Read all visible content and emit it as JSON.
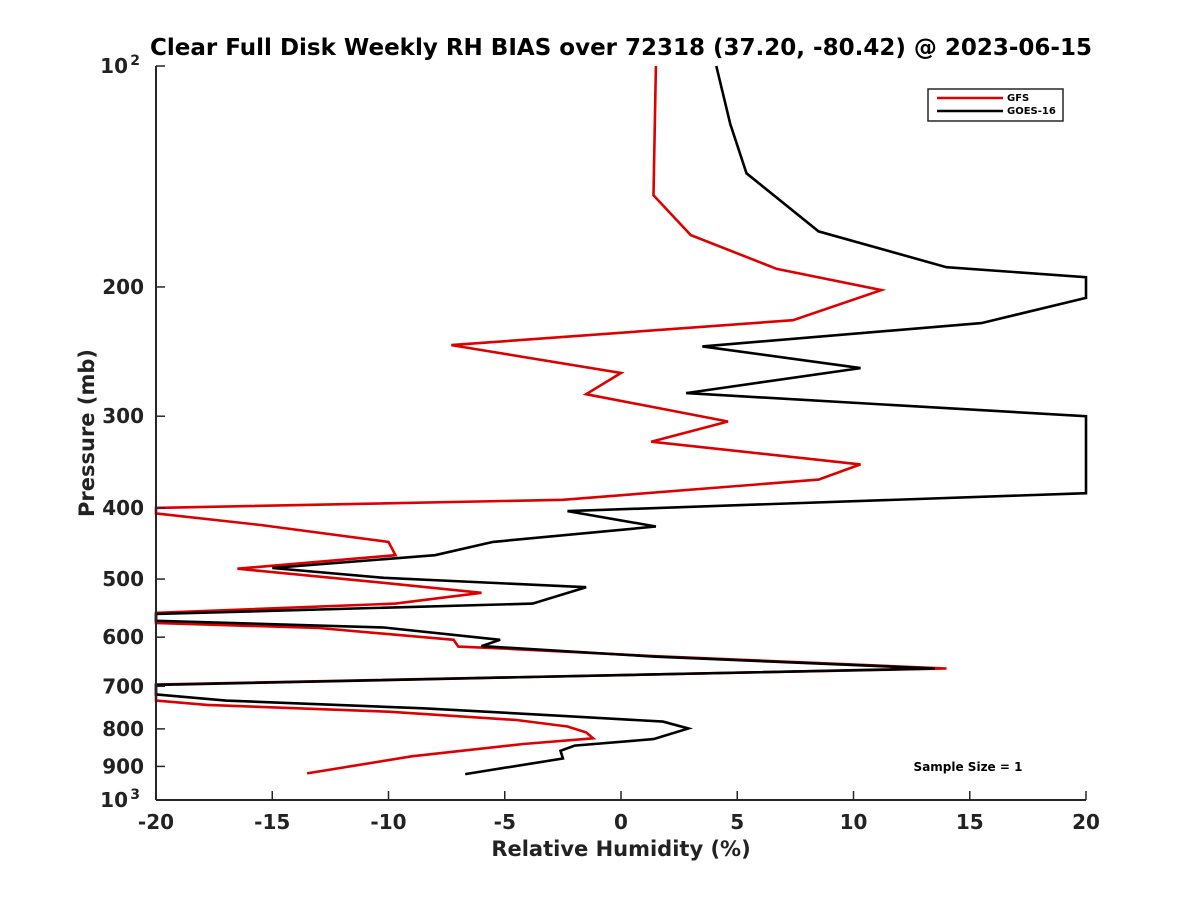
{
  "chart_data": {
    "type": "line",
    "title": "Clear Full Disk Weekly RH BIAS over 72318 (37.20, -80.42) @ 2023-06-15",
    "xlabel": "Relative Humidity (%)",
    "ylabel": "Pressure (mb)",
    "xlim": [
      -20,
      20
    ],
    "ylim": [
      100,
      1000
    ],
    "y_scale": "log",
    "y_reversed": true,
    "x_ticks": [
      "-20",
      "-15",
      "-10",
      "-5",
      "0",
      "5",
      "10",
      "15",
      "20"
    ],
    "y_ticks": [
      {
        "value": 100,
        "base": "10",
        "exp": "2"
      },
      {
        "value": 200,
        "label": "200"
      },
      {
        "value": 300,
        "label": "300"
      },
      {
        "value": 400,
        "label": "400"
      },
      {
        "value": 500,
        "label": "500"
      },
      {
        "value": 600,
        "label": "600"
      },
      {
        "value": 700,
        "label": "700"
      },
      {
        "value": 800,
        "label": "800"
      },
      {
        "value": 900,
        "label": "900"
      },
      {
        "value": 1000,
        "base": "10",
        "exp": "3"
      }
    ],
    "grid": false,
    "legend_position": "top-right",
    "annotation": "Sample Size = 1",
    "series": [
      {
        "name": "GFS",
        "color": "#dd0000",
        "points": [
          [
            1.5,
            100
          ],
          [
            1.4,
            150
          ],
          [
            3.0,
            170
          ],
          [
            6.7,
            189
          ],
          [
            11.2,
            202
          ],
          [
            7.4,
            222
          ],
          [
            -7.3,
            240
          ],
          [
            0.0,
            262
          ],
          [
            -1.5,
            280
          ],
          [
            4.6,
            305
          ],
          [
            1.3,
            325
          ],
          [
            10.3,
            349
          ],
          [
            8.5,
            366
          ],
          [
            -2.5,
            390
          ],
          [
            -20.0,
            400
          ],
          [
            -20.0,
            407
          ],
          [
            -15.5,
            422
          ],
          [
            -10.0,
            445
          ],
          [
            -9.7,
            464
          ],
          [
            -16.5,
            484
          ],
          [
            -10.5,
            505
          ],
          [
            -6.0,
            522
          ],
          [
            -9.7,
            540
          ],
          [
            -20.0,
            556
          ],
          [
            -20.0,
            574
          ],
          [
            -13.0,
            583
          ],
          [
            -7.2,
            605
          ],
          [
            -7.0,
            618
          ],
          [
            -5.0,
            622
          ],
          [
            1.5,
            637
          ],
          [
            14.0,
            662
          ],
          [
            -20.0,
            696
          ],
          [
            -20.0,
            732
          ],
          [
            -17.8,
            742
          ],
          [
            -10.0,
            758
          ],
          [
            -4.5,
            778
          ],
          [
            -2.3,
            794
          ],
          [
            -1.5,
            809
          ],
          [
            -1.2,
            824
          ],
          [
            -4.2,
            839
          ],
          [
            -9.0,
            872
          ],
          [
            -13.5,
            920
          ]
        ]
      },
      {
        "name": "GOES-16",
        "color": "#000000",
        "points": [
          [
            4.1,
            100
          ],
          [
            4.7,
            120
          ],
          [
            5.4,
            140
          ],
          [
            8.5,
            168
          ],
          [
            14.0,
            188
          ],
          [
            20.0,
            194
          ],
          [
            20.0,
            207
          ],
          [
            15.5,
            224
          ],
          [
            3.5,
            241
          ],
          [
            10.3,
            258
          ],
          [
            2.8,
            279
          ],
          [
            20.0,
            300
          ],
          [
            20.0,
            382
          ],
          [
            -2.3,
            404
          ],
          [
            1.5,
            424
          ],
          [
            -5.5,
            445
          ],
          [
            -8.0,
            464
          ],
          [
            -15.0,
            483
          ],
          [
            -10.2,
            498
          ],
          [
            -1.5,
            513
          ],
          [
            -3.8,
            540
          ],
          [
            -20.0,
            558
          ],
          [
            -20.0,
            570
          ],
          [
            -10.2,
            582
          ],
          [
            -5.2,
            605
          ],
          [
            -6.0,
            617
          ],
          [
            1.5,
            638
          ],
          [
            13.5,
            662
          ],
          [
            -20.0,
            697
          ],
          [
            -20.0,
            718
          ],
          [
            -17.0,
            732
          ],
          [
            -8.5,
            750
          ],
          [
            -2.5,
            768
          ],
          [
            1.8,
            782
          ],
          [
            2.9,
            799
          ],
          [
            1.4,
            826
          ],
          [
            -2.0,
            843
          ],
          [
            -2.6,
            857
          ],
          [
            -2.5,
            878
          ],
          [
            -6.7,
            922
          ]
        ]
      }
    ]
  }
}
